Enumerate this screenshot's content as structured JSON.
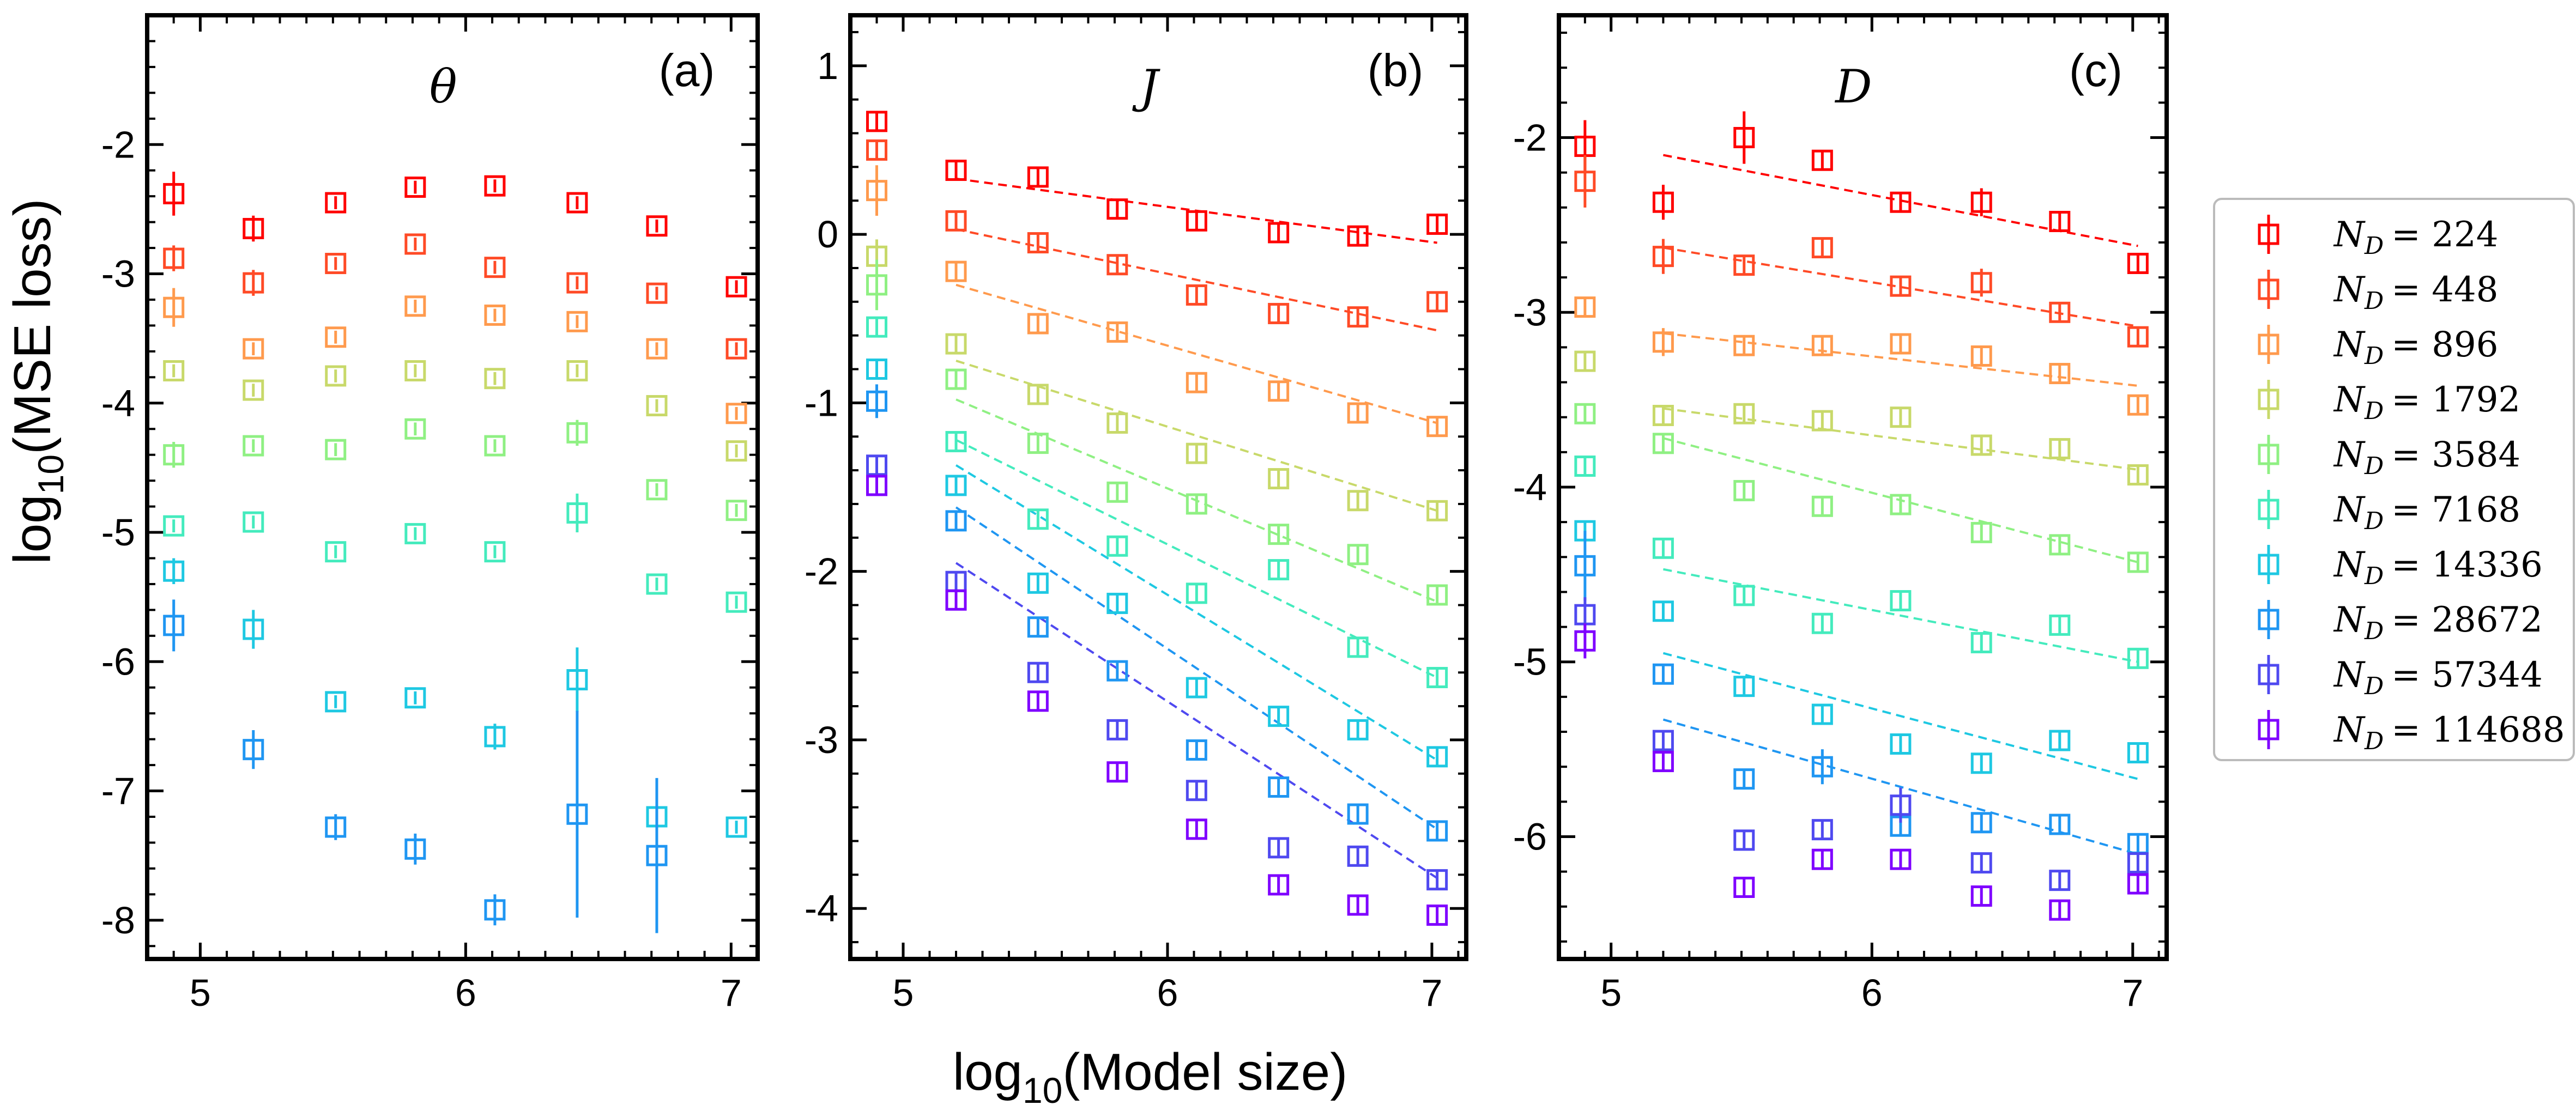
{
  "figure": {
    "ylabel_prefix": "log",
    "ylabel_sub": "10",
    "ylabel_rest": "(MSE loss)",
    "xlabel_prefix": "log",
    "xlabel_sub": "10",
    "xlabel_rest": "(Model size)"
  },
  "legend": {
    "entries": [
      {
        "label": "N_D = 224",
        "var": "N",
        "sub": "D",
        "value": "= 224",
        "color": "#ff0000"
      },
      {
        "label": "N_D = 448",
        "var": "N",
        "sub": "D",
        "value": "= 448",
        "color": "#ff4a26"
      },
      {
        "label": "N_D = 896",
        "var": "N",
        "sub": "D",
        "value": "= 896",
        "color": "#ff9a4d"
      },
      {
        "label": "N_D = 1792",
        "var": "N",
        "sub": "D",
        "value": "= 1792",
        "color": "#c8d96a"
      },
      {
        "label": "N_D = 3584",
        "var": "N",
        "sub": "D",
        "value": "= 3584",
        "color": "#8ff083"
      },
      {
        "label": "N_D = 7168",
        "var": "N",
        "sub": "D",
        "value": "= 7168",
        "color": "#44ebbd"
      },
      {
        "label": "N_D = 14336",
        "var": "N",
        "sub": "D",
        "value": "= 14336",
        "color": "#1ec8e2"
      },
      {
        "label": "N_D = 28672",
        "var": "N",
        "sub": "D",
        "value": "= 28672",
        "color": "#1f96f2"
      },
      {
        "label": "N_D = 57344",
        "var": "N",
        "sub": "D",
        "value": "= 57344",
        "color": "#4f49f0"
      },
      {
        "label": "N_D = 114688",
        "var": "N",
        "sub": "D",
        "value": "= 114688",
        "color": "#7f00ff"
      }
    ]
  },
  "chart_data": [
    {
      "type": "scatter",
      "panel_label": "(a)",
      "title": "θ",
      "xlim": [
        4.8,
        7.1
      ],
      "ylim": [
        -8.3,
        -1.0
      ],
      "xticks": [
        5,
        6,
        7
      ],
      "xtick_labels": [
        "5",
        "6",
        "7"
      ],
      "yticks": [
        -8,
        -7,
        -6,
        -5,
        -4,
        -3,
        -2
      ],
      "ytick_labels": [
        "-8",
        "-7",
        "-6",
        "-5",
        "-4",
        "-3",
        "-2"
      ],
      "x": [
        4.9,
        5.2,
        5.51,
        5.81,
        6.11,
        6.42,
        6.72,
        7.02
      ],
      "series": [
        {
          "name": "N_D = 224",
          "y": [
            -2.38,
            -2.65,
            -2.45,
            -2.33,
            -2.32,
            -2.45,
            -2.63,
            -3.1
          ],
          "err": [
            0.17,
            0.1,
            0.05,
            0.05,
            0.05,
            0.05,
            0.05,
            0.05
          ]
        },
        {
          "name": "N_D = 448",
          "y": [
            -2.88,
            -3.07,
            -2.92,
            -2.77,
            -2.95,
            -3.07,
            -3.15,
            -3.58
          ],
          "err": [
            0.1,
            0.1,
            0.05,
            0.05,
            0.05,
            0.05,
            0.05,
            0.05
          ]
        },
        {
          "name": "N_D = 896",
          "y": [
            -3.26,
            -3.58,
            -3.49,
            -3.25,
            -3.32,
            -3.37,
            -3.58,
            -4.08
          ],
          "err": [
            0.15,
            0.05,
            0.05,
            0.05,
            0.05,
            0.05,
            0.05,
            0.05
          ]
        },
        {
          "name": "N_D = 1792",
          "y": [
            -3.75,
            -3.9,
            -3.79,
            -3.75,
            -3.81,
            -3.75,
            -4.02,
            -4.37
          ],
          "err": [
            0.05,
            0.05,
            0.05,
            0.05,
            0.05,
            0.05,
            0.05,
            0.05
          ]
        },
        {
          "name": "N_D = 3584",
          "y": [
            -4.4,
            -4.33,
            -4.36,
            -4.2,
            -4.33,
            -4.23,
            -4.67,
            -4.83
          ],
          "err": [
            0.1,
            0.05,
            0.05,
            0.05,
            0.05,
            0.1,
            0.05,
            0.05
          ]
        },
        {
          "name": "N_D = 7168",
          "y": [
            -4.95,
            -4.92,
            -5.15,
            -5.01,
            -5.15,
            -4.85,
            -5.4,
            -5.54
          ],
          "err": [
            0.05,
            0.05,
            0.05,
            0.05,
            0.05,
            0.15,
            0.05,
            0.05
          ]
        },
        {
          "name": "N_D = 14336",
          "y": [
            -5.3,
            -5.75,
            -6.31,
            -6.28,
            -6.58,
            -6.14,
            -7.2,
            -7.28
          ],
          "err": [
            0.1,
            0.15,
            0.05,
            0.05,
            0.1,
            0.25,
            0.05,
            0.05
          ]
        },
        {
          "name": "N_D = 28672",
          "y": [
            -5.72,
            -6.68,
            -7.28,
            -7.45,
            -7.92,
            -7.18,
            -7.5,
            null
          ],
          "err": [
            0.2,
            0.15,
            0.1,
            0.12,
            0.12,
            0.8,
            0.6,
            null
          ]
        },
        {
          "name": "N_D = 57344",
          "y": [
            null,
            null,
            null,
            null,
            null,
            null,
            null,
            null
          ],
          "err": [
            null,
            null,
            null,
            null,
            null,
            null,
            null,
            null
          ]
        },
        {
          "name": "N_D = 114688",
          "y": [
            null,
            null,
            null,
            null,
            null,
            null,
            null,
            null
          ],
          "err": [
            null,
            null,
            null,
            null,
            null,
            null,
            null,
            null
          ]
        }
      ]
    },
    {
      "type": "scatter",
      "panel_label": "(b)",
      "title": "J",
      "xlim": [
        4.8,
        7.13
      ],
      "ylim": [
        -4.3,
        1.3
      ],
      "xticks": [
        5,
        6,
        7
      ],
      "xtick_labels": [
        "5",
        "6",
        "7"
      ],
      "yticks": [
        -4,
        -3,
        -2,
        -1,
        0,
        1
      ],
      "ytick_labels": [
        "-4",
        "-3",
        "-2",
        "-1",
        "0",
        "1"
      ],
      "x": [
        4.9,
        5.2,
        5.51,
        5.81,
        6.11,
        6.42,
        6.72,
        7.02
      ],
      "fit_x_range": [
        5.2,
        7.02
      ],
      "series": [
        {
          "name": "N_D = 224",
          "y": [
            0.67,
            0.38,
            0.34,
            0.15,
            0.08,
            0.01,
            -0.01,
            0.06
          ],
          "err": [
            0.05,
            0.05,
            0.05,
            0.05,
            0.05,
            0.05,
            0.05,
            0.05
          ],
          "fit": [
            0.33,
            -0.05
          ]
        },
        {
          "name": "N_D = 448",
          "y": [
            0.5,
            0.08,
            -0.05,
            -0.18,
            -0.36,
            -0.47,
            -0.49,
            -0.4
          ],
          "err": [
            0.05,
            0.05,
            0.05,
            0.05,
            0.05,
            0.05,
            0.05,
            0.05
          ],
          "fit": [
            0.03,
            -0.57
          ]
        },
        {
          "name": "N_D = 896",
          "y": [
            0.26,
            -0.22,
            -0.53,
            -0.58,
            -0.88,
            -0.93,
            -1.06,
            -1.14
          ],
          "err": [
            0.15,
            0.05,
            0.05,
            0.05,
            0.05,
            0.05,
            0.05,
            0.05
          ],
          "fit": [
            -0.3,
            -1.12
          ]
        },
        {
          "name": "N_D = 1792",
          "y": [
            -0.13,
            -0.65,
            -0.95,
            -1.12,
            -1.3,
            -1.45,
            -1.58,
            -1.64
          ],
          "err": [
            0.1,
            0.05,
            0.05,
            0.05,
            0.05,
            0.05,
            0.05,
            0.05
          ],
          "fit": [
            -0.75,
            -1.64
          ]
        },
        {
          "name": "N_D = 3584",
          "y": [
            -0.3,
            -0.86,
            -1.24,
            -1.53,
            -1.6,
            -1.78,
            -1.9,
            -2.14
          ],
          "err": [
            0.15,
            0.05,
            0.05,
            0.05,
            0.05,
            0.05,
            0.05,
            0.05
          ],
          "fit": [
            -0.98,
            -2.18
          ]
        },
        {
          "name": "N_D = 7168",
          "y": [
            -0.55,
            -1.23,
            -1.69,
            -1.85,
            -2.13,
            -1.99,
            -2.45,
            -2.63
          ],
          "err": [
            0.05,
            0.05,
            0.05,
            0.05,
            0.05,
            0.05,
            0.05,
            0.05
          ],
          "fit": [
            -1.22,
            -2.63
          ]
        },
        {
          "name": "N_D = 14336",
          "y": [
            -0.8,
            -1.49,
            -2.07,
            -2.19,
            -2.69,
            -2.86,
            -2.94,
            -3.1
          ],
          "err": [
            0.05,
            0.05,
            0.05,
            0.05,
            0.05,
            0.05,
            0.05,
            0.05
          ],
          "fit": [
            -1.37,
            -3.12
          ]
        },
        {
          "name": "N_D = 28672",
          "y": [
            -0.99,
            -1.7,
            -2.33,
            -2.59,
            -3.06,
            -3.28,
            -3.44,
            -3.54
          ],
          "err": [
            0.1,
            0.05,
            0.05,
            0.05,
            0.05,
            0.05,
            0.05,
            0.05
          ],
          "fit": [
            -1.62,
            -3.53
          ]
        },
        {
          "name": "N_D = 57344",
          "y": [
            -1.37,
            -2.06,
            -2.6,
            -2.94,
            -3.3,
            -3.64,
            -3.69,
            -3.83
          ],
          "err": [
            0.05,
            0.05,
            0.05,
            0.05,
            0.05,
            0.05,
            0.05,
            0.05
          ],
          "fit": [
            -1.95,
            -3.82
          ]
        },
        {
          "name": "N_D = 114688",
          "y": [
            -1.49,
            -2.17,
            -2.77,
            -3.19,
            -3.53,
            -3.86,
            -3.98,
            -4.04
          ],
          "err": [
            0.05,
            0.05,
            0.05,
            0.05,
            0.05,
            0.05,
            0.05,
            0.05
          ],
          "fit": null
        }
      ]
    },
    {
      "type": "scatter",
      "panel_label": "(c)",
      "title": "D",
      "xlim": [
        4.8,
        7.13
      ],
      "ylim": [
        -6.7,
        -1.3
      ],
      "xticks": [
        5,
        6,
        7
      ],
      "xtick_labels": [
        "5",
        "6",
        "7"
      ],
      "yticks": [
        -6,
        -5,
        -4,
        -3,
        -2
      ],
      "ytick_labels": [
        "-6",
        "-5",
        "-4",
        "-3",
        "-2"
      ],
      "x": [
        4.9,
        5.2,
        5.51,
        5.81,
        6.11,
        6.42,
        6.72,
        7.02
      ],
      "fit_x_range": [
        5.2,
        7.02
      ],
      "series": [
        {
          "name": "N_D = 224",
          "y": [
            -2.05,
            -2.37,
            -2.0,
            -2.13,
            -2.37,
            -2.37,
            -2.48,
            -2.72
          ],
          "err": [
            0.15,
            0.1,
            0.15,
            0.05,
            0.05,
            0.08,
            0.05,
            0.05
          ],
          "fit": [
            -2.1,
            -2.62
          ]
        },
        {
          "name": "N_D = 448",
          "y": [
            -2.25,
            -2.68,
            -2.73,
            -2.63,
            -2.85,
            -2.83,
            -3.0,
            -3.14
          ],
          "err": [
            0.15,
            0.1,
            0.05,
            0.05,
            0.05,
            0.08,
            0.05,
            0.05
          ],
          "fit": [
            -2.63,
            -3.08
          ]
        },
        {
          "name": "N_D = 896",
          "y": [
            -2.97,
            -3.17,
            -3.19,
            -3.19,
            -3.18,
            -3.25,
            -3.35,
            -3.53
          ],
          "err": [
            0.05,
            0.08,
            0.05,
            0.05,
            0.05,
            0.05,
            0.05,
            0.05
          ],
          "fit": [
            -3.12,
            -3.42
          ]
        },
        {
          "name": "N_D = 1792",
          "y": [
            -3.28,
            -3.59,
            -3.58,
            -3.62,
            -3.6,
            -3.76,
            -3.78,
            -3.93
          ],
          "err": [
            0.05,
            0.05,
            0.05,
            0.05,
            0.05,
            0.05,
            0.05,
            0.05
          ],
          "fit": [
            -3.55,
            -3.9
          ]
        },
        {
          "name": "N_D = 3584",
          "y": [
            -3.58,
            -3.75,
            -4.02,
            -4.11,
            -4.1,
            -4.26,
            -4.33,
            -4.43
          ],
          "err": [
            0.05,
            0.05,
            0.05,
            0.05,
            0.05,
            0.05,
            0.05,
            0.05
          ],
          "fit": [
            -3.72,
            -4.43
          ]
        },
        {
          "name": "N_D = 7168",
          "y": [
            -3.88,
            -4.35,
            -4.62,
            -4.78,
            -4.65,
            -4.89,
            -4.79,
            -4.98
          ],
          "err": [
            0.05,
            0.05,
            0.05,
            0.05,
            0.05,
            0.05,
            0.05,
            0.05
          ],
          "fit": [
            -4.47,
            -5.0
          ]
        },
        {
          "name": "N_D = 14336",
          "y": [
            -4.25,
            -4.71,
            -5.14,
            -5.3,
            -5.47,
            -5.58,
            -5.45,
            -5.52
          ],
          "err": [
            0.05,
            0.05,
            0.05,
            0.05,
            0.05,
            0.05,
            0.05,
            0.05
          ],
          "fit": [
            -4.95,
            -5.67
          ]
        },
        {
          "name": "N_D = 28672",
          "y": [
            -4.45,
            -5.07,
            -5.67,
            -5.6,
            -5.94,
            -5.92,
            -5.93,
            -6.04
          ],
          "err": [
            0.2,
            0.05,
            0.05,
            0.1,
            0.05,
            0.05,
            0.05,
            0.05
          ],
          "fit": [
            -5.33,
            -6.1
          ]
        },
        {
          "name": "N_D = 57344",
          "y": [
            -4.73,
            -5.45,
            -6.02,
            -5.96,
            -5.82,
            -6.15,
            -6.25,
            -6.15
          ],
          "err": [
            0.1,
            0.05,
            0.05,
            0.05,
            0.1,
            0.05,
            0.05,
            0.05
          ],
          "fit": null
        },
        {
          "name": "N_D = 114688",
          "y": [
            -4.88,
            -5.57,
            -6.29,
            -6.13,
            -6.13,
            -6.34,
            -6.42,
            -6.27
          ],
          "err": [
            0.1,
            0.05,
            0.05,
            0.05,
            0.05,
            0.05,
            0.05,
            0.05
          ],
          "fit": null
        }
      ]
    }
  ]
}
